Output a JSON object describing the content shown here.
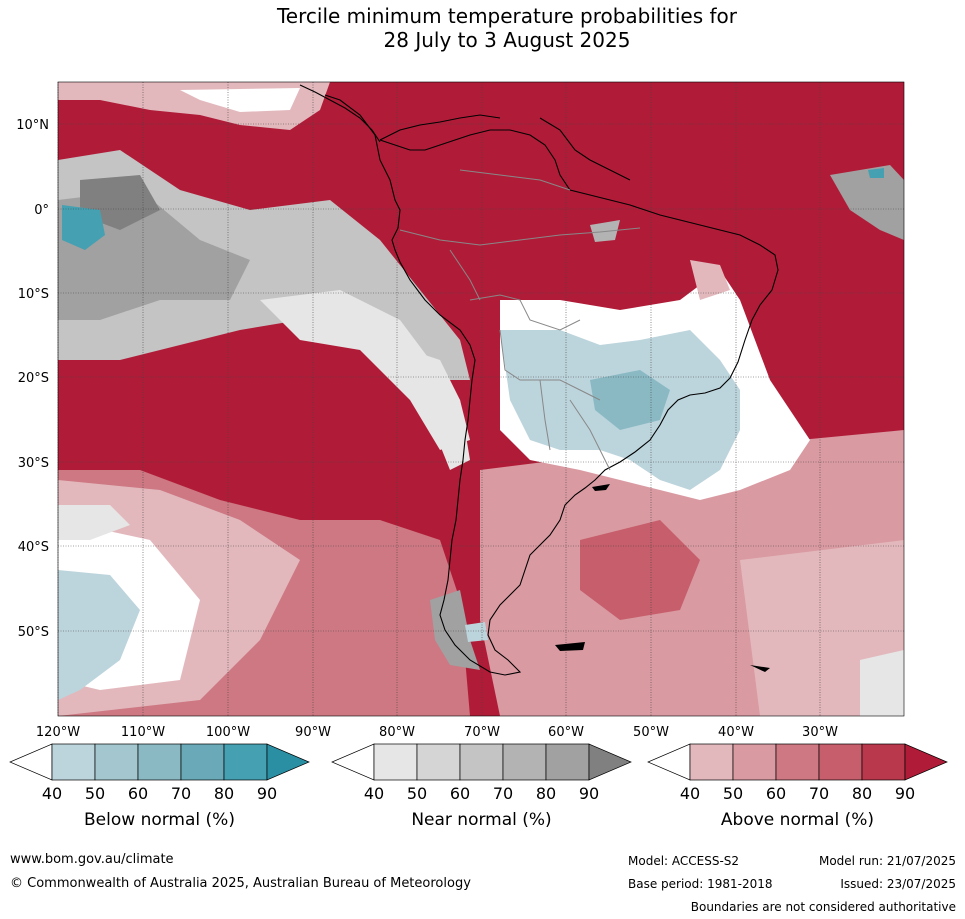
{
  "title": {
    "line1": "Tercile minimum temperature probabilities for",
    "line2": "28 July to 3 August 2025"
  },
  "map": {
    "lat_labels": [
      "10°N",
      "0°",
      "10°S",
      "20°S",
      "30°S",
      "40°S",
      "50°S"
    ],
    "lon_labels": [
      "120°W",
      "110°W",
      "100°W",
      "90°W",
      "80°W",
      "70°W",
      "60°W",
      "50°W",
      "40°W",
      "30°W"
    ]
  },
  "legend": {
    "below": {
      "label": "Below normal (%)",
      "ticks": [
        "40",
        "50",
        "60",
        "70",
        "80",
        "90"
      ],
      "colors": [
        "#bcd4dc",
        "#a4c7cf",
        "#8ab9c4",
        "#6aa9b8",
        "#45a0b1",
        "#2a8fa3"
      ]
    },
    "near": {
      "label": "Near normal (%)",
      "ticks": [
        "40",
        "50",
        "60",
        "70",
        "80",
        "90"
      ],
      "colors": [
        "#e6e6e6",
        "#d5d5d5",
        "#c4c4c4",
        "#b3b3b3",
        "#a1a1a1",
        "#808080"
      ]
    },
    "above": {
      "label": "Above normal (%)",
      "ticks": [
        "40",
        "50",
        "60",
        "70",
        "80",
        "90"
      ],
      "colors": [
        "#e2b8bd",
        "#d99aa2",
        "#cd7882",
        "#c65e6b",
        "#b9384c",
        "#b01c38"
      ]
    }
  },
  "footer": {
    "website": "www.bom.gov.au/climate",
    "copyright": "© Commonwealth of Australia 2025, Australian Bureau of Meteorology",
    "model": "Model: ACCESS-S2",
    "model_run": "Model run: 21/07/2025",
    "base_period": "Base period: 1981-2018",
    "issued": "Issued: 23/07/2025",
    "disclaimer": "Boundaries are not considered authoritative"
  }
}
